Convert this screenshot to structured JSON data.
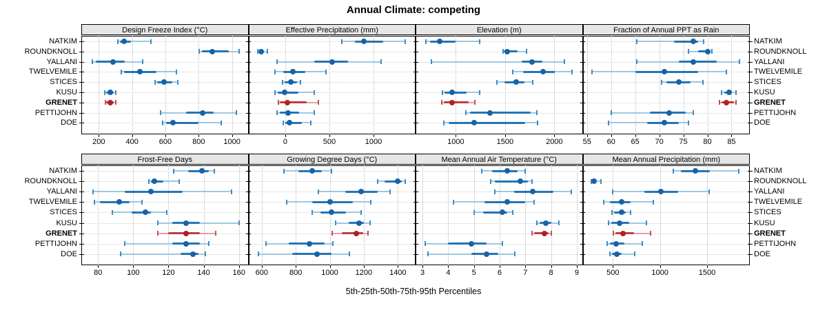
{
  "title": "Annual Climate: competing",
  "footer_label": "5th-25th-50th-75th-95th Percentiles",
  "bold_site": "GRENET",
  "colors": {
    "blue_thin": "#9dc7e2",
    "blue_cap": "#3f8cc3",
    "blue_thick": "#2474b5",
    "blue_dot": "#1763a8",
    "red_thin": "#dba4a4",
    "red_cap": "#c35050",
    "red_thick": "#c03c3c",
    "red_dot": "#b02126",
    "strip_bg": "#e6e6e6",
    "grid": "#b9b9b9"
  },
  "chart_data": {
    "type": "dotplot-percentile-trellis",
    "percentiles": [
      5,
      25,
      50,
      75,
      95
    ],
    "sites": [
      "NATKIM",
      "ROUNDKNOLL",
      "YALLANI",
      "TWELVEMILE",
      "STICES",
      "KUSU",
      "GRENET",
      "PETTIJOHN",
      "DOE"
    ],
    "panels": [
      {
        "title": "Design Freeze Index (°C)",
        "ticks": [
          200,
          400,
          600,
          800,
          1000
        ],
        "xlim": [
          95,
          1099
        ],
        "values": [
          [
            315,
            325,
            350,
            395,
            515
          ],
          [
            805,
            820,
            880,
            980,
            1045
          ],
          [
            160,
            180,
            285,
            355,
            465
          ],
          [
            335,
            350,
            445,
            545,
            665
          ],
          [
            540,
            550,
            590,
            640,
            675
          ],
          [
            235,
            245,
            270,
            290,
            300
          ],
          [
            240,
            245,
            270,
            290,
            300
          ],
          [
            570,
            725,
            825,
            890,
            1025
          ],
          [
            585,
            605,
            645,
            800,
            935
          ]
        ]
      },
      {
        "title": "Effective Precipitation (mm)",
        "ticks": [
          0,
          500,
          1000
        ],
        "xlim": [
          -418,
          1477
        ],
        "values": [
          [
            640,
            790,
            890,
            1110,
            1360
          ],
          [
            -310,
            -300,
            -275,
            -240,
            -200
          ],
          [
            -90,
            325,
            535,
            715,
            1085
          ],
          [
            -115,
            -20,
            85,
            225,
            465
          ],
          [
            -35,
            -10,
            65,
            135,
            170
          ],
          [
            -115,
            -85,
            -10,
            150,
            325
          ],
          [
            -80,
            -60,
            25,
            240,
            375
          ],
          [
            -90,
            -65,
            30,
            155,
            330
          ],
          [
            -20,
            0,
            45,
            185,
            290
          ]
        ]
      },
      {
        "title": "Elevation (m)",
        "ticks": [
          1000,
          1500,
          2000
        ],
        "xlim": [
          592,
          2288
        ],
        "values": [
          [
            700,
            740,
            835,
            1000,
            1240
          ],
          [
            1480,
            1490,
            1520,
            1630,
            1720
          ],
          [
            750,
            1670,
            1775,
            1880,
            2100
          ],
          [
            1580,
            1680,
            1885,
            2005,
            2180
          ],
          [
            1415,
            1495,
            1610,
            1700,
            1780
          ],
          [
            865,
            885,
            960,
            1110,
            1245
          ],
          [
            860,
            880,
            960,
            1130,
            1190
          ],
          [
            1100,
            1145,
            1345,
            1760,
            1820
          ],
          [
            880,
            925,
            1185,
            1705,
            1830
          ]
        ]
      },
      {
        "title": "Fraction of Annual PPT as Rain",
        "ticks": [
          55,
          60,
          65,
          70,
          75,
          80,
          85
        ],
        "xlim": [
          54.1,
          88.8
        ],
        "values": [
          [
            65.3,
            73,
            77,
            78,
            79.2
          ],
          [
            76,
            78,
            80,
            80.5,
            81
          ],
          [
            65.4,
            74,
            77,
            82,
            86.7
          ],
          [
            56,
            65,
            71,
            78,
            84
          ],
          [
            70.5,
            71.5,
            74,
            76.5,
            79
          ],
          [
            83,
            83.5,
            84.5,
            85,
            86
          ],
          [
            82.5,
            83,
            84,
            85.5,
            86
          ],
          [
            60,
            68,
            72,
            75.5,
            77
          ],
          [
            59.5,
            67.5,
            71,
            74,
            76
          ]
        ]
      },
      {
        "title": "Frost-Free Days",
        "ticks": [
          80,
          100,
          120,
          140,
          160
        ],
        "xlim": [
          70.5,
          165.4
        ],
        "values": [
          [
            123,
            131,
            139,
            143,
            146
          ],
          [
            109,
            110,
            112,
            117,
            126
          ],
          [
            77,
            95,
            110,
            128,
            156
          ],
          [
            78,
            81,
            92,
            98,
            105
          ],
          [
            88,
            99,
            107,
            110,
            119
          ],
          [
            114,
            122,
            130,
            138,
            160
          ],
          [
            114,
            120,
            130,
            138,
            147
          ],
          [
            95,
            122,
            130,
            138,
            143
          ],
          [
            93,
            127,
            134,
            137,
            141
          ]
        ]
      },
      {
        "title": "Growing Degree Days (°C)",
        "ticks": [
          600,
          800,
          1000,
          1200,
          1400
        ],
        "xlim": [
          522,
          1504
        ],
        "values": [
          [
            730,
            815,
            895,
            955,
            1010
          ],
          [
            1280,
            1320,
            1400,
            1425,
            1445
          ],
          [
            935,
            1090,
            1185,
            1280,
            1355
          ],
          [
            745,
            895,
            1000,
            1135,
            1240
          ],
          [
            895,
            945,
            1010,
            1095,
            1185
          ],
          [
            1035,
            1110,
            1170,
            1200,
            1235
          ],
          [
            1015,
            1070,
            1155,
            1195,
            1225
          ],
          [
            625,
            760,
            880,
            970,
            1020
          ],
          [
            580,
            780,
            925,
            1010,
            1115
          ]
        ]
      },
      {
        "title": "Mean Annual Air Temperature (°C)",
        "ticks": [
          3,
          4,
          5,
          6,
          7,
          8,
          9
        ],
        "xlim": [
          2.73,
          9.23
        ],
        "values": [
          [
            5.3,
            5.7,
            6.3,
            6.7,
            7.0
          ],
          [
            5.65,
            5.8,
            6.8,
            7.1,
            7.25
          ],
          [
            5.8,
            6.55,
            7.3,
            8.1,
            8.8
          ],
          [
            4.2,
            5.4,
            6.3,
            7.0,
            7.35
          ],
          [
            5.0,
            5.35,
            6.1,
            6.3,
            6.5
          ],
          [
            7.45,
            7.55,
            7.8,
            8.0,
            8.3
          ],
          [
            7.25,
            7.35,
            7.75,
            7.9,
            8.0
          ],
          [
            3.1,
            4.0,
            4.9,
            5.5,
            6.1
          ],
          [
            3.2,
            4.9,
            5.5,
            5.95,
            6.6
          ]
        ]
      },
      {
        "title": "Mean Annual Precipitation (mm)",
        "ticks": [
          500,
          1000,
          1500
        ],
        "xlim": [
          179,
          1954
        ],
        "values": [
          [
            1140,
            1225,
            1375,
            1530,
            1840
          ],
          [
            270,
            280,
            300,
            325,
            370
          ],
          [
            500,
            835,
            1010,
            1195,
            1525
          ],
          [
            400,
            470,
            595,
            690,
            930
          ],
          [
            490,
            510,
            590,
            635,
            690
          ],
          [
            450,
            480,
            570,
            675,
            855
          ],
          [
            505,
            530,
            610,
            725,
            900
          ],
          [
            440,
            465,
            535,
            620,
            810
          ],
          [
            470,
            490,
            540,
            595,
            730
          ]
        ]
      }
    ]
  }
}
